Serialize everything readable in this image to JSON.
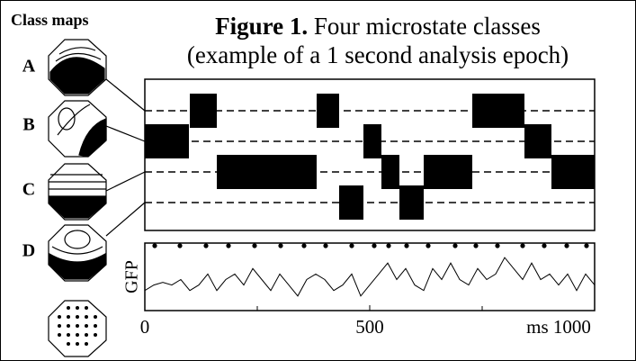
{
  "chart_data": {
    "type": "microstate",
    "title_label": "Figure 1.",
    "title": "Four microstate classes",
    "subtitle": "(example of a 1 second analysis epoch)",
    "maps_label": "Class maps",
    "series": [
      {
        "name": "A",
        "segments": [
          [
            100,
            160
          ],
          [
            382,
            432
          ],
          [
            728,
            844
          ]
        ]
      },
      {
        "name": "B",
        "segments": [
          [
            0,
            98
          ],
          [
            486,
            526
          ],
          [
            844,
            904
          ]
        ]
      },
      {
        "name": "C",
        "segments": [
          [
            160,
            382
          ],
          [
            526,
            566
          ],
          [
            620,
            728
          ],
          [
            904,
            1000
          ]
        ]
      },
      {
        "name": "D",
        "segments": [
          [
            432,
            486
          ],
          [
            566,
            620
          ]
        ]
      }
    ],
    "xlim": [
      0,
      1000
    ],
    "xticks": [
      0,
      500,
      {
        "value": 1000,
        "label": "ms 1000"
      }
    ],
    "xminorticks": [
      250,
      750
    ],
    "gfp": {
      "label": "GFP",
      "ylim": [
        0,
        10
      ],
      "x": [
        0,
        20,
        40,
        60,
        80,
        100,
        120,
        140,
        160,
        180,
        200,
        220,
        240,
        260,
        280,
        300,
        320,
        340,
        360,
        380,
        400,
        420,
        440,
        460,
        480,
        500,
        520,
        540,
        560,
        580,
        600,
        620,
        640,
        660,
        680,
        700,
        720,
        740,
        760,
        780,
        800,
        820,
        840,
        860,
        880,
        900,
        920,
        940,
        960,
        980,
        1000
      ],
      "values": [
        3,
        4,
        4.5,
        4,
        5,
        3,
        4,
        6,
        3,
        5,
        6,
        4,
        7,
        5,
        3,
        6,
        4,
        2,
        5,
        6,
        5,
        3,
        4,
        6,
        2,
        4,
        6,
        8,
        5,
        7,
        4,
        3,
        7,
        5,
        8,
        5,
        4,
        7,
        5,
        6,
        9,
        7,
        5,
        8,
        5,
        6,
        4,
        6,
        3,
        6,
        4
      ],
      "peaks": [
        22,
        78,
        136,
        186,
        244,
        302,
        354,
        402,
        460,
        510,
        542,
        582,
        630,
        690,
        736,
        784,
        840,
        888,
        938,
        982
      ]
    }
  }
}
